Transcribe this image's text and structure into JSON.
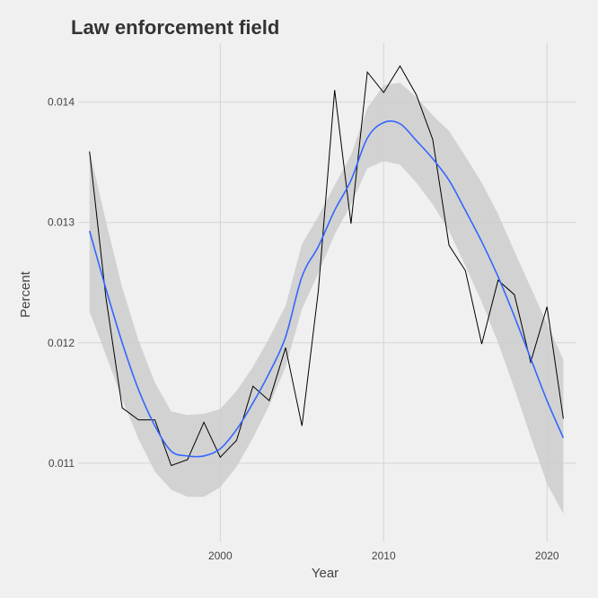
{
  "chart_data": {
    "type": "line",
    "title": "Law enforcement field",
    "xlabel": "Year",
    "ylabel": "Percent",
    "xlim": [
      1991.3,
      2021.8
    ],
    "ylim": [
      0.01035,
      0.01449
    ],
    "x_ticks": [
      2000,
      2010,
      2020
    ],
    "x_tick_labels": [
      "2000",
      "2010",
      "2020"
    ],
    "y_ticks": [
      0.011,
      0.012,
      0.013,
      0.014
    ],
    "y_tick_labels": [
      "0.011",
      "0.012",
      "0.013",
      "0.014"
    ],
    "grid": true,
    "legend": "none",
    "series": [
      {
        "type": "line",
        "color": "#000000",
        "x": [
          1992,
          1993,
          1994,
          1995,
          1996,
          1997,
          1998,
          1999,
          2000,
          2001,
          2002,
          2003,
          2004,
          2005,
          2006,
          2007,
          2008,
          2009,
          2010,
          2011,
          2012,
          2013,
          2014,
          2015,
          2016,
          2017,
          2018,
          2019,
          2020,
          2021
        ],
        "values": [
          0.01359,
          0.01238,
          0.01146,
          0.01136,
          0.01136,
          0.01098,
          0.01103,
          0.01134,
          0.01105,
          0.01119,
          0.01164,
          0.01152,
          0.01196,
          0.01131,
          0.01243,
          0.0141,
          0.01299,
          0.01425,
          0.01408,
          0.0143,
          0.01406,
          0.01369,
          0.01281,
          0.0126,
          0.01199,
          0.01252,
          0.0124,
          0.01184,
          0.0123,
          0.01137
        ]
      },
      {
        "type": "smooth",
        "color": "#3366ff",
        "band_color": "#cccccc",
        "x": [
          1992,
          1993,
          1994,
          1995,
          1996,
          1997,
          1998,
          1999,
          2000,
          2001,
          2002,
          2003,
          2004,
          2005,
          2006,
          2007,
          2008,
          2009,
          2010,
          2011,
          2012,
          2013,
          2014,
          2015,
          2016,
          2017,
          2018,
          2019,
          2020,
          2021
        ],
        "values": [
          0.01293,
          0.01245,
          0.012,
          0.01161,
          0.01131,
          0.0111,
          0.01106,
          0.01106,
          0.01112,
          0.01128,
          0.0115,
          0.01175,
          0.01205,
          0.01255,
          0.0128,
          0.0131,
          0.01335,
          0.0137,
          0.01383,
          0.01382,
          0.01368,
          0.01353,
          0.01335,
          0.0131,
          0.01284,
          0.01255,
          0.01222,
          0.01187,
          0.01152,
          0.01121
        ],
        "lower": [
          0.01226,
          0.0119,
          0.01153,
          0.0112,
          0.01093,
          0.01078,
          0.01072,
          0.01072,
          0.0108,
          0.01097,
          0.01121,
          0.01148,
          0.0118,
          0.01228,
          0.01258,
          0.0129,
          0.01315,
          0.01345,
          0.01351,
          0.01348,
          0.01333,
          0.01315,
          0.01293,
          0.01264,
          0.01234,
          0.012,
          0.01162,
          0.01122,
          0.01083,
          0.01058
        ],
        "upper": [
          0.0136,
          0.01301,
          0.01246,
          0.01202,
          0.01167,
          0.01143,
          0.0114,
          0.01141,
          0.01145,
          0.0116,
          0.0118,
          0.01204,
          0.01231,
          0.01282,
          0.01305,
          0.01331,
          0.01356,
          0.01395,
          0.01414,
          0.01416,
          0.01404,
          0.01389,
          0.01376,
          0.01355,
          0.01333,
          0.01307,
          0.01276,
          0.01246,
          0.01216,
          0.01186
        ]
      }
    ]
  }
}
